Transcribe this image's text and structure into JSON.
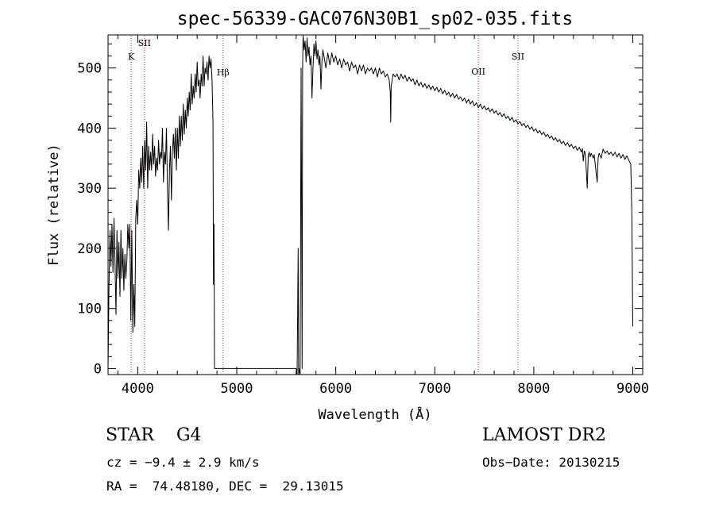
{
  "chart_data": {
    "type": "line",
    "title": "spec-56339-GAC076N30B1_sp02-035.fits",
    "xlabel": "Wavelength (Å)",
    "ylabel": "Flux (relative)",
    "xlim": [
      3700,
      9100
    ],
    "ylim": [
      -10,
      555
    ],
    "xticks": [
      4000,
      5000,
      6000,
      7000,
      8000,
      9000
    ],
    "yticks": [
      0,
      100,
      200,
      300,
      400,
      500
    ],
    "grid": false,
    "series": [
      {
        "points": [
          [
            3700,
            0
          ],
          [
            3710,
            140
          ],
          [
            3720,
            230
          ],
          [
            3730,
            170
          ],
          [
            3740,
            240
          ],
          [
            3750,
            160
          ],
          [
            3760,
            250
          ],
          [
            3770,
            180
          ],
          [
            3780,
            90
          ],
          [
            3790,
            230
          ],
          [
            3800,
            150
          ],
          [
            3810,
            210
          ],
          [
            3820,
            120
          ],
          [
            3830,
            230
          ],
          [
            3840,
            150
          ],
          [
            3850,
            200
          ],
          [
            3860,
            130
          ],
          [
            3870,
            190
          ],
          [
            3880,
            150
          ],
          [
            3890,
            180
          ],
          [
            3900,
            240
          ],
          [
            3910,
            200
          ],
          [
            3920,
            240
          ],
          [
            3930,
            80
          ],
          [
            3940,
            230
          ],
          [
            3950,
            60
          ],
          [
            3960,
            140
          ],
          [
            3970,
            70
          ],
          [
            3980,
            250
          ],
          [
            3990,
            280
          ],
          [
            4000,
            240
          ],
          [
            4010,
            330
          ],
          [
            4020,
            300
          ],
          [
            4030,
            350
          ],
          [
            4040,
            310
          ],
          [
            4050,
            370
          ],
          [
            4060,
            300
          ],
          [
            4070,
            380
          ],
          [
            4080,
            330
          ],
          [
            4090,
            410
          ],
          [
            4100,
            300
          ],
          [
            4110,
            370
          ],
          [
            4120,
            330
          ],
          [
            4130,
            360
          ],
          [
            4140,
            330
          ],
          [
            4150,
            390
          ],
          [
            4160,
            340
          ],
          [
            4170,
            370
          ],
          [
            4180,
            320
          ],
          [
            4190,
            350
          ],
          [
            4200,
            330
          ],
          [
            4210,
            380
          ],
          [
            4220,
            340
          ],
          [
            4230,
            360
          ],
          [
            4240,
            350
          ],
          [
            4250,
            400
          ],
          [
            4260,
            310
          ],
          [
            4270,
            360
          ],
          [
            4280,
            340
          ],
          [
            4290,
            400
          ],
          [
            4300,
            300
          ],
          [
            4310,
            230
          ],
          [
            4320,
            330
          ],
          [
            4330,
            370
          ],
          [
            4340,
            280
          ],
          [
            4350,
            360
          ],
          [
            4360,
            390
          ],
          [
            4370,
            350
          ],
          [
            4380,
            400
          ],
          [
            4390,
            330
          ],
          [
            4400,
            400
          ],
          [
            4410,
            350
          ],
          [
            4420,
            420
          ],
          [
            4430,
            370
          ],
          [
            4440,
            420
          ],
          [
            4450,
            380
          ],
          [
            4460,
            440
          ],
          [
            4470,
            390
          ],
          [
            4480,
            430
          ],
          [
            4490,
            400
          ],
          [
            4500,
            450
          ],
          [
            4510,
            420
          ],
          [
            4520,
            460
          ],
          [
            4530,
            430
          ],
          [
            4540,
            490
          ],
          [
            4550,
            440
          ],
          [
            4560,
            470
          ],
          [
            4570,
            450
          ],
          [
            4580,
            490
          ],
          [
            4590,
            460
          ],
          [
            4600,
            510
          ],
          [
            4610,
            470
          ],
          [
            4620,
            480
          ],
          [
            4630,
            450
          ],
          [
            4640,
            490
          ],
          [
            4650,
            470
          ],
          [
            4660,
            520
          ],
          [
            4670,
            470
          ],
          [
            4680,
            500
          ],
          [
            4690,
            490
          ],
          [
            4700,
            510
          ],
          [
            4710,
            480
          ],
          [
            4720,
            520
          ],
          [
            4730,
            500
          ],
          [
            4740,
            515
          ],
          [
            4750,
            480
          ],
          [
            4760,
            410
          ],
          [
            4765,
            140
          ],
          [
            4770,
            240
          ],
          [
            4775,
            0
          ],
          [
            4780,
            0
          ],
          [
            5000,
            0
          ],
          [
            5400,
            0
          ],
          [
            5600,
            0
          ],
          [
            5610,
            -10
          ],
          [
            5620,
            200
          ],
          [
            5625,
            -10
          ],
          [
            5630,
            0
          ],
          [
            5640,
            -10
          ],
          [
            5650,
            500
          ],
          [
            5660,
            0
          ],
          [
            5665,
            500
          ],
          [
            5670,
            560
          ],
          [
            5680,
            530
          ],
          [
            5690,
            545
          ],
          [
            5700,
            510
          ],
          [
            5710,
            550
          ],
          [
            5720,
            520
          ],
          [
            5730,
            535
          ],
          [
            5740,
            505
          ],
          [
            5750,
            520
          ],
          [
            5760,
            450
          ],
          [
            5770,
            500
          ],
          [
            5780,
            540
          ],
          [
            5790,
            520
          ],
          [
            5800,
            545
          ],
          [
            5810,
            515
          ],
          [
            5820,
            530
          ],
          [
            5830,
            505
          ],
          [
            5840,
            520
          ],
          [
            5850,
            465
          ],
          [
            5860,
            510
          ],
          [
            5870,
            530
          ],
          [
            5880,
            520
          ],
          [
            5900,
            500
          ],
          [
            5920,
            525
          ],
          [
            5940,
            505
          ],
          [
            5960,
            525
          ],
          [
            5980,
            510
          ],
          [
            6000,
            520
          ],
          [
            6020,
            505
          ],
          [
            6040,
            515
          ],
          [
            6060,
            500
          ],
          [
            6080,
            515
          ],
          [
            6100,
            505
          ],
          [
            6120,
            510
          ],
          [
            6140,
            495
          ],
          [
            6160,
            510
          ],
          [
            6180,
            500
          ],
          [
            6200,
            505
          ],
          [
            6220,
            490
          ],
          [
            6240,
            505
          ],
          [
            6260,
            495
          ],
          [
            6280,
            505
          ],
          [
            6300,
            490
          ],
          [
            6320,
            500
          ],
          [
            6340,
            495
          ],
          [
            6360,
            500
          ],
          [
            6380,
            490
          ],
          [
            6400,
            500
          ],
          [
            6420,
            485
          ],
          [
            6440,
            500
          ],
          [
            6460,
            490
          ],
          [
            6480,
            495
          ],
          [
            6500,
            485
          ],
          [
            6520,
            490
          ],
          [
            6540,
            480
          ],
          [
            6550,
            460
          ],
          [
            6555,
            410
          ],
          [
            6560,
            470
          ],
          [
            6570,
            480
          ],
          [
            6580,
            490
          ],
          [
            6600,
            485
          ],
          [
            6620,
            490
          ],
          [
            6640,
            480
          ],
          [
            6660,
            490
          ],
          [
            6680,
            482
          ],
          [
            6700,
            488
          ],
          [
            6720,
            478
          ],
          [
            6740,
            485
          ],
          [
            6760,
            478
          ],
          [
            6780,
            482
          ],
          [
            6800,
            472
          ],
          [
            6820,
            480
          ],
          [
            6840,
            470
          ],
          [
            6860,
            476
          ],
          [
            6880,
            468
          ],
          [
            6900,
            474
          ],
          [
            6920,
            466
          ],
          [
            6940,
            472
          ],
          [
            6960,
            464
          ],
          [
            6980,
            470
          ],
          [
            7000,
            462
          ],
          [
            7020,
            468
          ],
          [
            7040,
            460
          ],
          [
            7060,
            466
          ],
          [
            7080,
            457
          ],
          [
            7100,
            463
          ],
          [
            7120,
            455
          ],
          [
            7140,
            460
          ],
          [
            7160,
            452
          ],
          [
            7180,
            458
          ],
          [
            7200,
            450
          ],
          [
            7220,
            456
          ],
          [
            7240,
            448
          ],
          [
            7260,
            452
          ],
          [
            7280,
            445
          ],
          [
            7300,
            450
          ],
          [
            7320,
            442
          ],
          [
            7340,
            448
          ],
          [
            7360,
            440
          ],
          [
            7380,
            445
          ],
          [
            7400,
            437
          ],
          [
            7420,
            442
          ],
          [
            7440,
            434
          ],
          [
            7460,
            440
          ],
          [
            7480,
            432
          ],
          [
            7500,
            437
          ],
          [
            7520,
            430
          ],
          [
            7540,
            434
          ],
          [
            7560,
            427
          ],
          [
            7580,
            432
          ],
          [
            7600,
            425
          ],
          [
            7620,
            429
          ],
          [
            7640,
            422
          ],
          [
            7660,
            426
          ],
          [
            7680,
            419
          ],
          [
            7700,
            424
          ],
          [
            7720,
            416
          ],
          [
            7740,
            420
          ],
          [
            7760,
            413
          ],
          [
            7780,
            418
          ],
          [
            7800,
            410
          ],
          [
            7820,
            414
          ],
          [
            7840,
            407
          ],
          [
            7860,
            411
          ],
          [
            7880,
            404
          ],
          [
            7900,
            408
          ],
          [
            7920,
            401
          ],
          [
            7940,
            405
          ],
          [
            7960,
            398
          ],
          [
            7980,
            402
          ],
          [
            8000,
            395
          ],
          [
            8020,
            399
          ],
          [
            8040,
            392
          ],
          [
            8060,
            396
          ],
          [
            8080,
            389
          ],
          [
            8100,
            393
          ],
          [
            8120,
            386
          ],
          [
            8140,
            390
          ],
          [
            8160,
            383
          ],
          [
            8180,
            387
          ],
          [
            8200,
            380
          ],
          [
            8220,
            384
          ],
          [
            8240,
            377
          ],
          [
            8260,
            381
          ],
          [
            8280,
            374
          ],
          [
            8300,
            378
          ],
          [
            8320,
            371
          ],
          [
            8340,
            376
          ],
          [
            8360,
            369
          ],
          [
            8380,
            373
          ],
          [
            8400,
            366
          ],
          [
            8420,
            370
          ],
          [
            8440,
            363
          ],
          [
            8460,
            368
          ],
          [
            8480,
            360
          ],
          [
            8490,
            366
          ],
          [
            8500,
            345
          ],
          [
            8510,
            362
          ],
          [
            8520,
            358
          ],
          [
            8530,
            330
          ],
          [
            8540,
            300
          ],
          [
            8550,
            355
          ],
          [
            8560,
            360
          ],
          [
            8570,
            352
          ],
          [
            8580,
            358
          ],
          [
            8600,
            350
          ],
          [
            8610,
            356
          ],
          [
            8620,
            340
          ],
          [
            8640,
            310
          ],
          [
            8650,
            350
          ],
          [
            8660,
            358
          ],
          [
            8680,
            350
          ],
          [
            8700,
            365
          ],
          [
            8720,
            358
          ],
          [
            8740,
            362
          ],
          [
            8760,
            356
          ],
          [
            8780,
            360
          ],
          [
            8800,
            354
          ],
          [
            8820,
            360
          ],
          [
            8840,
            352
          ],
          [
            8860,
            358
          ],
          [
            8880,
            350
          ],
          [
            8900,
            356
          ],
          [
            8920,
            348
          ],
          [
            8940,
            354
          ],
          [
            8960,
            346
          ],
          [
            8980,
            340
          ],
          [
            8990,
            260
          ],
          [
            9000,
            70
          ]
        ]
      }
    ],
    "lines": [
      {
        "label": "K",
        "x": 3934
      },
      {
        "label": "SII",
        "x": 4068
      },
      {
        "label": "Hβ",
        "x": 4862
      },
      {
        "label": "OII",
        "x": 7440
      },
      {
        "label": "SII",
        "x": 7840
      }
    ]
  },
  "info": {
    "class_text": "STAR    G4",
    "survey": "LAMOST DR2",
    "cz": "cz = −9.4 ± 2.9 km/s",
    "obs_date": "Obs−Date: 20130215",
    "radec": "RA =  74.48180, DEC =  29.13015"
  },
  "colors": {
    "line": "#000000",
    "marker_line": "#b22222"
  }
}
